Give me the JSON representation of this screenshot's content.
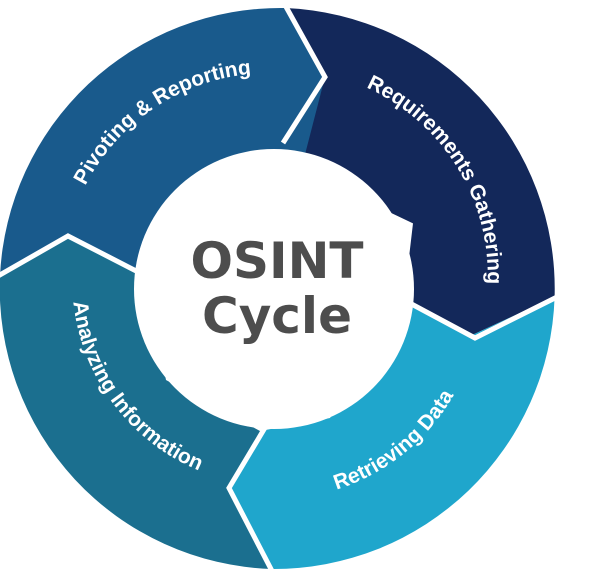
{
  "diagram": {
    "title_line1": "OSINT",
    "title_line2": "Cycle",
    "segments": [
      {
        "label": "Requirements Gathering",
        "color": "#13285a"
      },
      {
        "label": "Retrieving Data",
        "color": "#1fa6cc"
      },
      {
        "label": "Analyzing Information",
        "color": "#1b6f8f"
      },
      {
        "label": "Pivoting & Reporting",
        "color": "#195a8c"
      }
    ]
  }
}
